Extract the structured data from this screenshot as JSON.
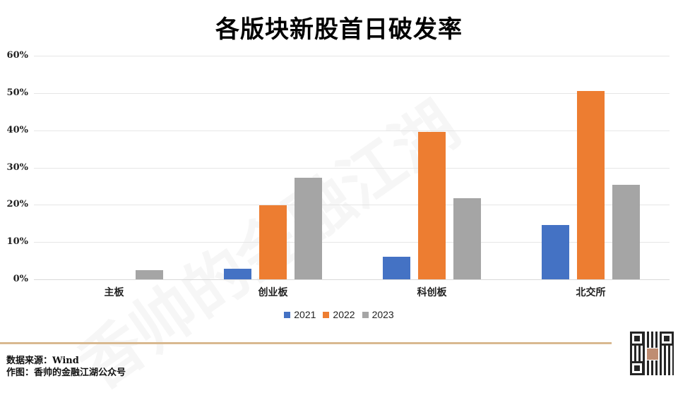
{
  "title": "各版块新股首日破发率",
  "watermark": "香帅的金融江湖",
  "chart_data": {
    "type": "bar",
    "title": "各版块新股首日破发率",
    "xlabel": "",
    "ylabel": "",
    "categories": [
      "主板",
      "创业板",
      "科创板",
      "北交所"
    ],
    "series": [
      {
        "name": "2021",
        "color": "#4472c4",
        "values": [
          0,
          2.9,
          6.1,
          14.6
        ]
      },
      {
        "name": "2022",
        "color": "#ed7d31",
        "values": [
          0,
          19.9,
          39.6,
          50.5
        ]
      },
      {
        "name": "2023",
        "color": "#a5a5a5",
        "values": [
          2.5,
          27.3,
          21.8,
          25.4
        ]
      }
    ],
    "unit": "%",
    "ylim": [
      0,
      60
    ],
    "yticks": [
      "0%",
      "10%",
      "20%",
      "30%",
      "40%",
      "50%",
      "60%"
    ],
    "grid": true,
    "legend_position": "bottom"
  },
  "footer": {
    "source": "数据来源：Wind",
    "author": "作图：香帅的金融江湖公众号"
  },
  "qr_code": "qr-code-icon"
}
